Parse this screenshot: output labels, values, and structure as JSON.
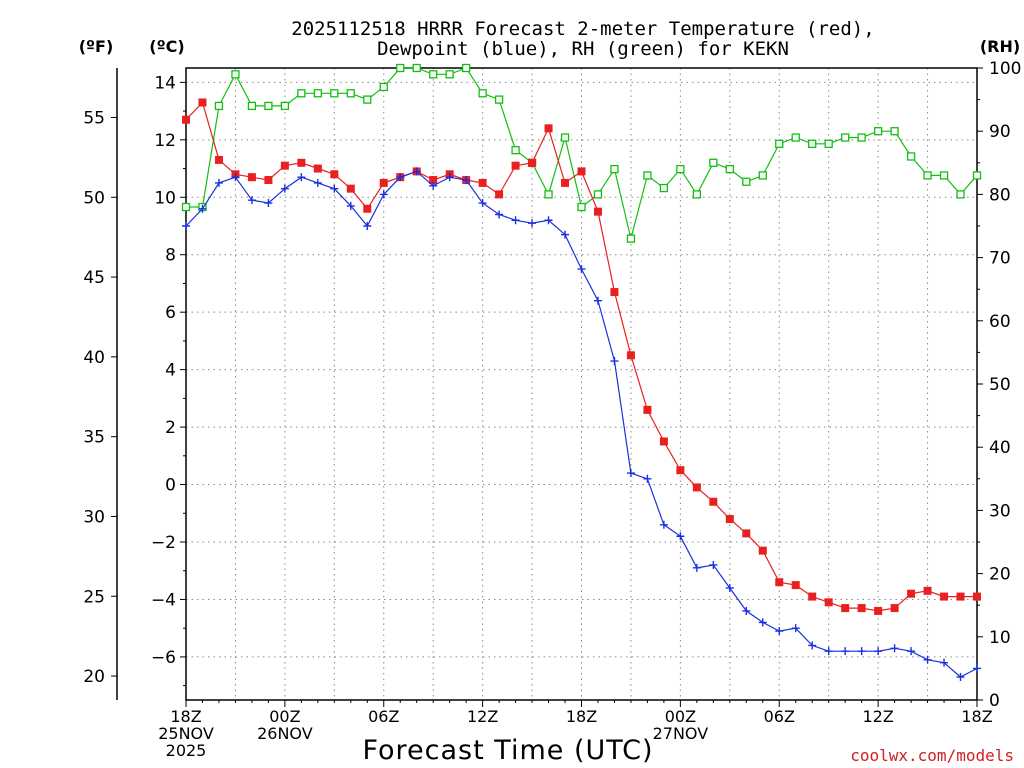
{
  "title_line1": "2025112518 HRRR Forecast 2-meter Temperature (red),",
  "title_line2": "Dewpoint (blue), RH (green) for KEKN",
  "unit_f": "(ºF)",
  "unit_c": "(ºC)",
  "unit_rh": "(RH)",
  "credit": "coolwx.com/models",
  "colors": {
    "temperature": "#e82020",
    "dewpoint": "#1a30e0",
    "rh": "#10c010"
  },
  "chart_data": {
    "type": "line",
    "title": "2025112518 HRRR Forecast 2-meter Temperature (red), Dewpoint (blue), RH (green) for KEKN",
    "xlabel": "Forecast Time (UTC)",
    "ylabel_left_outer": "(ºF)",
    "ylabel_left": "(ºC)",
    "ylabel_right": "(RH)",
    "x_unit": "forecast hour",
    "xlim": [
      0,
      48
    ],
    "ylim_c": [
      -7.5,
      14.5
    ],
    "ylim_rh": [
      0,
      100
    ],
    "yticks_c": [
      14,
      12,
      10,
      8,
      6,
      4,
      2,
      0,
      -2,
      -4,
      -6
    ],
    "ytick_labels_c": [
      "14",
      "12",
      "10",
      "8",
      "6",
      "4",
      "2",
      "0",
      "−2",
      "−4",
      "−6"
    ],
    "yticks_f": [
      "55",
      "50",
      "45",
      "40",
      "35",
      "30",
      "25",
      "20"
    ],
    "yticks_rh": [
      "100",
      "90",
      "80",
      "70",
      "60",
      "50",
      "40",
      "30",
      "20",
      "10",
      "0"
    ],
    "x_ticks": [
      {
        "hour": 0,
        "lines": [
          "18Z",
          "25NOV",
          "2025"
        ]
      },
      {
        "hour": 6,
        "lines": [
          "00Z",
          "26NOV"
        ]
      },
      {
        "hour": 12,
        "lines": [
          "06Z"
        ]
      },
      {
        "hour": 18,
        "lines": [
          "12Z"
        ]
      },
      {
        "hour": 24,
        "lines": [
          "18Z"
        ]
      },
      {
        "hour": 30,
        "lines": [
          "00Z",
          "27NOV"
        ]
      },
      {
        "hour": 36,
        "lines": [
          "06Z"
        ]
      },
      {
        "hour": 42,
        "lines": [
          "12Z"
        ]
      },
      {
        "hour": 48,
        "lines": [
          "18Z"
        ]
      }
    ],
    "series": [
      {
        "name": "Temperature",
        "unit": "C",
        "marker": "square-filled",
        "values": [
          12.7,
          13.3,
          11.3,
          10.8,
          10.7,
          10.6,
          11.1,
          11.2,
          11.0,
          10.8,
          10.3,
          9.6,
          10.5,
          10.7,
          10.9,
          10.6,
          10.8,
          10.6,
          10.5,
          10.1,
          11.1,
          11.2,
          12.4,
          10.5,
          10.9,
          9.5,
          6.7,
          4.5,
          2.6,
          1.5,
          0.5,
          -0.1,
          -0.6,
          -1.2,
          -1.7,
          -2.3,
          -3.4,
          -3.5,
          -3.9,
          -4.1,
          -4.3,
          -4.3,
          -4.4,
          -4.3,
          -3.8,
          -3.7,
          -3.9,
          -3.9,
          -3.9
        ]
      },
      {
        "name": "Dewpoint",
        "unit": "C",
        "marker": "plus",
        "values": [
          9.0,
          9.6,
          10.5,
          10.7,
          9.9,
          9.8,
          10.3,
          10.7,
          10.5,
          10.3,
          9.7,
          9.0,
          10.1,
          10.7,
          10.9,
          10.4,
          10.7,
          10.6,
          9.8,
          9.4,
          9.2,
          9.1,
          9.2,
          8.7,
          7.5,
          6.4,
          4.3,
          0.4,
          0.2,
          -1.4,
          -1.8,
          -2.9,
          -2.8,
          -3.6,
          -4.4,
          -4.8,
          -5.1,
          -5.0,
          -5.6,
          -5.8,
          -5.8,
          -5.8,
          -5.8,
          -5.7,
          -5.8,
          -6.1,
          -6.2,
          -6.7,
          -6.4
        ]
      },
      {
        "name": "RH",
        "unit": "%",
        "marker": "square-open",
        "values": [
          78,
          78,
          94,
          99,
          94,
          94,
          94,
          96,
          96,
          96,
          96,
          95,
          97,
          100,
          100,
          99,
          99,
          100,
          96,
          95,
          87,
          85,
          80,
          89,
          78,
          80,
          84,
          73,
          83,
          81,
          84,
          80,
          85,
          84,
          82,
          83,
          88,
          89,
          88,
          88,
          89,
          89,
          90,
          90,
          86,
          83,
          83,
          80,
          83
        ]
      }
    ]
  }
}
